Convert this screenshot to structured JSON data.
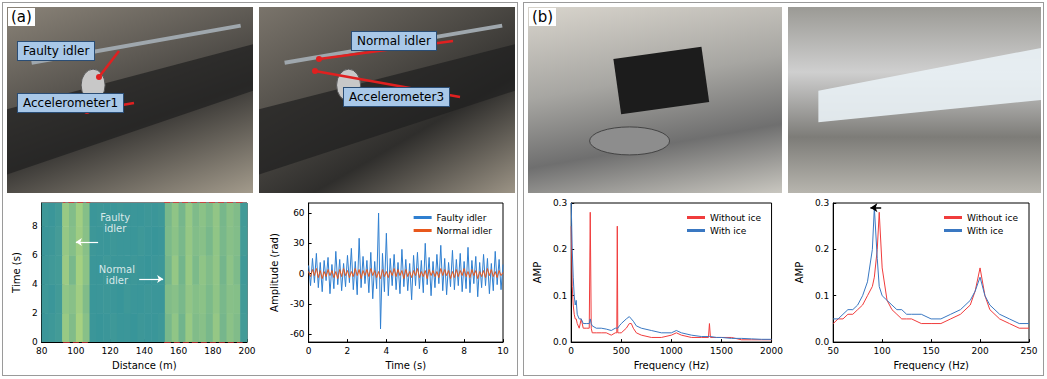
{
  "figure": {
    "panels": [
      {
        "letter": "(a)",
        "photos": [
          {
            "labels": [
              "Faulty idler",
              "Accelerometer1"
            ]
          },
          {
            "labels": [
              "Normal idler",
              "Accelerometer3"
            ]
          }
        ]
      },
      {
        "letter": "(b)",
        "photos": [
          {
            "labels": []
          },
          {
            "labels": []
          }
        ]
      }
    ]
  },
  "chart_data": [
    {
      "type": "heatmap",
      "x_label": "Distance (m)",
      "y_label": "Time (s)",
      "xlim": [
        80,
        200
      ],
      "xticks": [
        80,
        100,
        120,
        140,
        160,
        180,
        200
      ],
      "ylim": [
        0,
        9.6
      ],
      "yticks": [
        0,
        2,
        4,
        6,
        8
      ],
      "x_edges": [
        80,
        84,
        88,
        92,
        96,
        100,
        104,
        108,
        112,
        116,
        120,
        124,
        128,
        132,
        136,
        140,
        144,
        148,
        152,
        156,
        160,
        164,
        168,
        172,
        176,
        180,
        184,
        188,
        192,
        196,
        200
      ],
      "y_edges": [
        0,
        2,
        4,
        6,
        8,
        9.6
      ],
      "color_range": [
        0,
        1
      ],
      "cells": [
        [
          0.1,
          0.12,
          0.15,
          0.7,
          0.55,
          0.8,
          0.6,
          0.1,
          0.08,
          0.1,
          0.12,
          0.09,
          0.1,
          0.08,
          0.11,
          0.1,
          0.09,
          0.12,
          0.5,
          0.65,
          0.45,
          0.7,
          0.55,
          0.6,
          0.5,
          0.68,
          0.48,
          0.62,
          0.55,
          0.15
        ],
        [
          0.12,
          0.1,
          0.14,
          0.65,
          0.6,
          0.75,
          0.55,
          0.09,
          0.1,
          0.11,
          0.1,
          0.08,
          0.12,
          0.1,
          0.09,
          0.11,
          0.1,
          0.1,
          0.55,
          0.6,
          0.5,
          0.66,
          0.58,
          0.62,
          0.52,
          0.64,
          0.5,
          0.6,
          0.58,
          0.14
        ],
        [
          0.11,
          0.13,
          0.15,
          0.72,
          0.5,
          0.78,
          0.62,
          0.1,
          0.09,
          0.12,
          0.1,
          0.1,
          0.09,
          0.11,
          0.1,
          0.08,
          0.1,
          0.11,
          0.48,
          0.68,
          0.46,
          0.7,
          0.52,
          0.64,
          0.55,
          0.66,
          0.47,
          0.63,
          0.53,
          0.13
        ],
        [
          0.1,
          0.11,
          0.16,
          0.68,
          0.58,
          0.74,
          0.6,
          0.11,
          0.1,
          0.09,
          0.11,
          0.1,
          0.1,
          0.09,
          0.12,
          0.1,
          0.08,
          0.1,
          0.52,
          0.62,
          0.5,
          0.68,
          0.56,
          0.6,
          0.5,
          0.65,
          0.5,
          0.6,
          0.56,
          0.15
        ],
        [
          0.12,
          0.1,
          0.14,
          0.7,
          0.56,
          0.76,
          0.58,
          0.1,
          0.11,
          0.1,
          0.09,
          0.11,
          0.1,
          0.1,
          0.09,
          0.11,
          0.1,
          0.12,
          0.5,
          0.64,
          0.48,
          0.69,
          0.54,
          0.62,
          0.53,
          0.66,
          0.49,
          0.61,
          0.55,
          0.14
        ]
      ],
      "boxes": [
        {
          "x": [
            93,
            108
          ],
          "color": "#e03030",
          "line_style": "dashed"
        },
        {
          "x": [
            152,
            197
          ],
          "color": "#e03030",
          "line_style": "dashed"
        }
      ],
      "annotations": [
        {
          "text": "Faulty idler",
          "x": 123,
          "y": 8.2,
          "arrow": {
            "from": [
              113,
              6.9
            ],
            "to": [
              100,
              6.9
            ]
          }
        },
        {
          "text": "Normal idler",
          "x": 124,
          "y": 4.6,
          "arrow": {
            "from": [
              137,
              4.35
            ],
            "to": [
              151,
              4.35
            ]
          }
        }
      ]
    },
    {
      "type": "line",
      "x_label": "Time (s)",
      "y_label": "Amplitude (rad)",
      "xlim": [
        0,
        10
      ],
      "xticks": [
        0,
        2,
        4,
        6,
        8,
        10
      ],
      "ylim": [
        -68,
        70
      ],
      "yticks": [
        -60,
        -30,
        0,
        30,
        60
      ],
      "legend": "upper right",
      "x": [
        0,
        0.1,
        0.2,
        0.3,
        0.4,
        0.5,
        0.6,
        0.7,
        0.8,
        0.9,
        1,
        1.1,
        1.2,
        1.3,
        1.4,
        1.5,
        1.6,
        1.7,
        1.8,
        1.9,
        2,
        2.1,
        2.2,
        2.3,
        2.4,
        2.5,
        2.6,
        2.7,
        2.8,
        2.9,
        3,
        3.1,
        3.2,
        3.3,
        3.4,
        3.5,
        3.6,
        3.7,
        3.8,
        3.9,
        4,
        4.1,
        4.2,
        4.3,
        4.4,
        4.5,
        4.6,
        4.7,
        4.8,
        4.9,
        5,
        5.1,
        5.2,
        5.3,
        5.4,
        5.5,
        5.6,
        5.7,
        5.8,
        5.9,
        6,
        6.1,
        6.2,
        6.3,
        6.4,
        6.5,
        6.6,
        6.7,
        6.8,
        6.9,
        7,
        7.1,
        7.2,
        7.3,
        7.4,
        7.5,
        7.6,
        7.7,
        7.8,
        7.9,
        8,
        8.1,
        8.2,
        8.3,
        8.4,
        8.5,
        8.6,
        8.7,
        8.8,
        8.9,
        9,
        9.1,
        9.2,
        9.3,
        9.4,
        9.5,
        9.6,
        9.7,
        9.8,
        9.9,
        10
      ],
      "series": [
        {
          "name": "Faulty idler",
          "color": "#2f7fd0",
          "values": [
            8,
            -12,
            15,
            -9,
            20,
            -14,
            11,
            -18,
            13,
            -7,
            16,
            -20,
            9,
            -15,
            22,
            -11,
            14,
            -17,
            10,
            -13,
            18,
            -9,
            25,
            -16,
            12,
            -21,
            35,
            -14,
            17,
            -10,
            13,
            -19,
            21,
            -25,
            12,
            -15,
            60,
            -55,
            20,
            -18,
            40,
            -22,
            15,
            -12,
            19,
            -16,
            11,
            -20,
            24,
            -13,
            14,
            -17,
            10,
            -26,
            18,
            -12,
            21,
            -15,
            13,
            -19,
            30,
            -11,
            16,
            -22,
            12,
            -14,
            19,
            -10,
            28,
            -17,
            15,
            -21,
            11,
            -13,
            23,
            -16,
            14,
            -12,
            20,
            -18,
            12,
            -15,
            26,
            -19,
            13,
            -10,
            17,
            -23,
            11,
            -14,
            19,
            -12,
            15,
            -20,
            10,
            -17,
            22,
            -11,
            14,
            -16,
            9
          ]
        },
        {
          "name": "Normal idler",
          "color": "#e8581c",
          "values": [
            2,
            -3,
            4,
            -2,
            5,
            -4,
            3,
            -5,
            2,
            -3,
            4,
            -2,
            3,
            -4,
            2,
            -5,
            4,
            -3,
            5,
            -2,
            3,
            -4,
            2,
            -3,
            5,
            -2,
            4,
            -5,
            3,
            -2,
            4,
            -3,
            5,
            -2,
            3,
            -4,
            2,
            -5,
            4,
            -3,
            2,
            -4,
            3,
            -2,
            5,
            -3,
            4,
            -2,
            3,
            -5,
            4,
            -3,
            2,
            -4,
            3,
            -2,
            5,
            -4,
            2,
            -3,
            3,
            -5,
            4,
            -2,
            3,
            -3,
            2,
            -4,
            5,
            -2,
            4,
            -2,
            3,
            -5,
            2,
            -4,
            4,
            -3,
            3,
            -2,
            5,
            -3,
            2,
            -4,
            4,
            -2,
            3,
            -5,
            2,
            -3,
            3,
            -4,
            5,
            -2,
            4,
            -3,
            2,
            -4,
            3,
            -2,
            1
          ]
        }
      ]
    },
    {
      "type": "line",
      "x_label": "Frequency (Hz)",
      "y_label": "AMP",
      "xlim": [
        0,
        2000
      ],
      "xticks": [
        0,
        500,
        1000,
        1500,
        2000
      ],
      "ylim": [
        0,
        0.3
      ],
      "yticks": [
        {
          "value": 0,
          "label": "0.0"
        },
        0.1,
        0.2,
        0.3
      ],
      "legend": "upper right",
      "x": [
        0,
        10,
        20,
        30,
        40,
        50,
        60,
        80,
        100,
        120,
        150,
        180,
        190,
        200,
        210,
        250,
        300,
        350,
        400,
        440,
        455,
        460,
        465,
        480,
        500,
        550,
        580,
        600,
        620,
        650,
        700,
        800,
        900,
        1000,
        1050,
        1100,
        1200,
        1300,
        1370,
        1380,
        1390,
        1450,
        1500,
        1600,
        1700,
        1800,
        1900,
        2000
      ],
      "series": [
        {
          "name": "Without ice",
          "color": "#f03c3c",
          "values": [
            0.25,
            0.12,
            0.08,
            0.06,
            0.05,
            0.05,
            0.04,
            0.03,
            0.05,
            0.03,
            0.03,
            0.03,
            0.28,
            0.03,
            0.02,
            0.02,
            0.02,
            0.02,
            0.015,
            0.02,
            0.02,
            0.25,
            0.02,
            0.02,
            0.02,
            0.03,
            0.04,
            0.04,
            0.03,
            0.02,
            0.015,
            0.01,
            0.01,
            0.015,
            0.02,
            0.015,
            0.01,
            0.01,
            0.01,
            0.04,
            0.01,
            0.01,
            0.01,
            0.01,
            0.005,
            0.005,
            0.005,
            0.005
          ]
        },
        {
          "name": "With ice",
          "color": "#3a78c2",
          "values": [
            0.3,
            0.2,
            0.14,
            0.1,
            0.08,
            0.09,
            0.06,
            0.05,
            0.05,
            0.04,
            0.04,
            0.04,
            0.05,
            0.04,
            0.035,
            0.03,
            0.03,
            0.028,
            0.025,
            0.03,
            0.03,
            0.03,
            0.03,
            0.035,
            0.04,
            0.05,
            0.055,
            0.05,
            0.045,
            0.035,
            0.03,
            0.025,
            0.02,
            0.02,
            0.025,
            0.02,
            0.015,
            0.012,
            0.012,
            0.012,
            0.012,
            0.01,
            0.01,
            0.008,
            0.008,
            0.007,
            0.006,
            0.006
          ]
        }
      ]
    },
    {
      "type": "line",
      "x_label": "Frequency (Hz)",
      "y_label": "AMP",
      "xlim": [
        50,
        250
      ],
      "xticks": [
        50,
        100,
        150,
        200,
        250
      ],
      "ylim": [
        0,
        0.3
      ],
      "yticks": [
        {
          "value": 0,
          "label": "0.0"
        },
        0.1,
        0.2,
        0.3
      ],
      "legend": "upper right",
      "x": [
        50,
        55,
        60,
        65,
        70,
        75,
        80,
        85,
        90,
        92,
        95,
        97,
        100,
        105,
        110,
        115,
        120,
        125,
        130,
        140,
        150,
        160,
        170,
        180,
        190,
        195,
        200,
        205,
        210,
        220,
        230,
        240,
        250
      ],
      "series": [
        {
          "name": "Without ice",
          "color": "#f03c3c",
          "values": [
            0.04,
            0.05,
            0.05,
            0.06,
            0.06,
            0.07,
            0.08,
            0.1,
            0.12,
            0.14,
            0.2,
            0.28,
            0.16,
            0.09,
            0.07,
            0.06,
            0.05,
            0.05,
            0.05,
            0.04,
            0.04,
            0.04,
            0.05,
            0.06,
            0.08,
            0.11,
            0.16,
            0.1,
            0.07,
            0.05,
            0.04,
            0.03,
            0.03
          ]
        },
        {
          "name": "With ice",
          "color": "#3a78c2",
          "values": [
            0.05,
            0.05,
            0.06,
            0.07,
            0.07,
            0.08,
            0.1,
            0.13,
            0.2,
            0.29,
            0.18,
            0.12,
            0.1,
            0.09,
            0.08,
            0.07,
            0.07,
            0.06,
            0.06,
            0.06,
            0.05,
            0.05,
            0.06,
            0.07,
            0.09,
            0.11,
            0.14,
            0.1,
            0.08,
            0.06,
            0.05,
            0.04,
            0.04
          ]
        }
      ],
      "arrow": {
        "from": [
          99,
          0.29
        ],
        "to": [
          88,
          0.29
        ],
        "color": "#000000"
      }
    }
  ]
}
